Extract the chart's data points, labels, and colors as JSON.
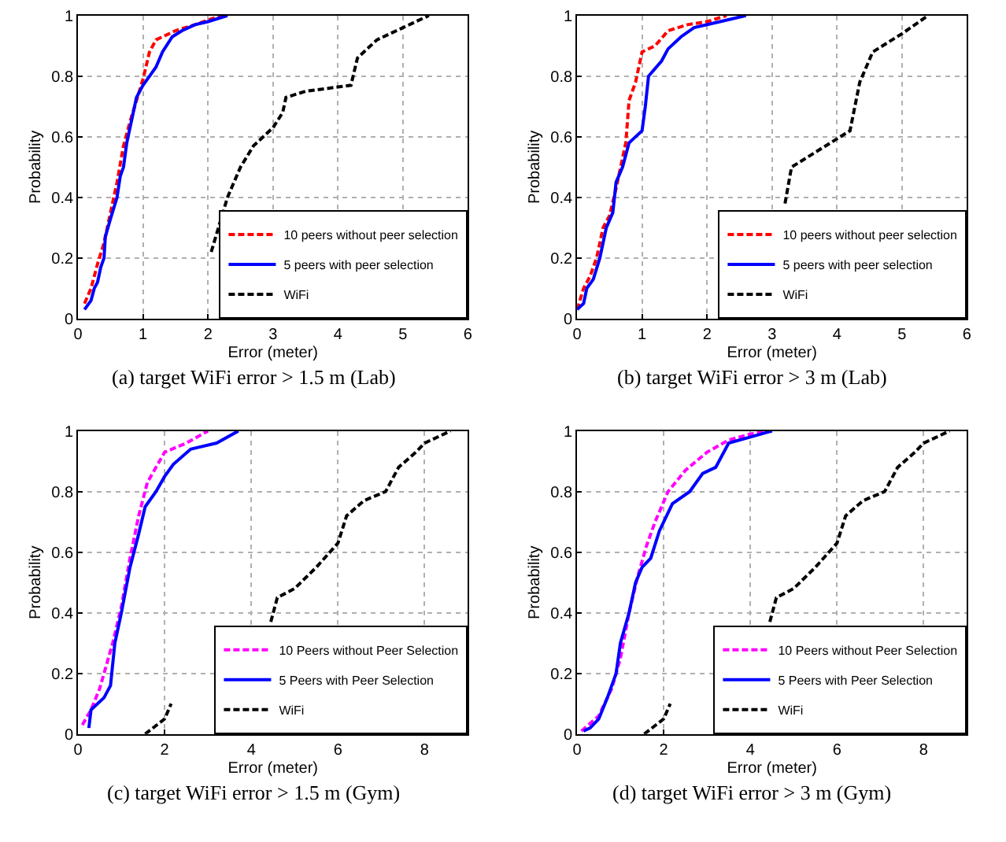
{
  "chart_data": [
    {
      "type": "line",
      "title": "(a) target WiFi error > 1.5 m (Lab)",
      "xlabel": "Error (meter)",
      "ylabel": "Probability",
      "xlim": [
        0,
        6
      ],
      "xticks": [
        0,
        1,
        2,
        3,
        4,
        5,
        6
      ],
      "ylim": [
        0,
        1
      ],
      "yticks": [
        0,
        0.2,
        0.4,
        0.6,
        0.8,
        1
      ],
      "grid": true,
      "legend": "bottom right",
      "marker": "none",
      "series": [
        {
          "name": "10 peers without peer selection",
          "color": "#ff0000",
          "line_style": "dashed",
          "x": [
            0.1,
            0.2,
            0.3,
            0.4,
            0.5,
            0.6,
            0.7,
            0.8,
            0.9,
            1.0,
            1.1,
            1.2,
            1.5,
            1.8,
            2.2
          ],
          "values": [
            0.05,
            0.1,
            0.18,
            0.25,
            0.35,
            0.45,
            0.57,
            0.65,
            0.72,
            0.79,
            0.88,
            0.92,
            0.95,
            0.97,
            1.0
          ]
        },
        {
          "name": "5 peers with peer selection",
          "color": "#0000ff",
          "line_style": "solid",
          "x": [
            0.1,
            0.2,
            0.25,
            0.3,
            0.35,
            0.4,
            0.42,
            0.5,
            0.6,
            0.65,
            0.7,
            0.75,
            0.8,
            0.9,
            1.0,
            1.1,
            1.2,
            1.3,
            1.45,
            1.6,
            1.8,
            2.0,
            2.3
          ],
          "values": [
            0.03,
            0.06,
            0.1,
            0.12,
            0.17,
            0.2,
            0.27,
            0.33,
            0.4,
            0.47,
            0.5,
            0.58,
            0.63,
            0.73,
            0.77,
            0.8,
            0.83,
            0.88,
            0.93,
            0.95,
            0.97,
            0.98,
            1.0
          ]
        },
        {
          "name": "WiFi",
          "color": "#000000",
          "line_style": "dashed",
          "x": [
            2.05,
            2.3,
            2.5,
            2.7,
            3.0,
            3.15,
            3.2,
            3.5,
            4.2,
            4.3,
            4.6,
            5.0,
            5.4
          ],
          "values": [
            0.22,
            0.4,
            0.5,
            0.57,
            0.63,
            0.68,
            0.73,
            0.75,
            0.77,
            0.86,
            0.92,
            0.96,
            1.0
          ]
        }
      ]
    },
    {
      "type": "line",
      "title": "(b) target WiFi error > 3 m (Lab)",
      "xlabel": "Error (meter)",
      "ylabel": "Probability",
      "xlim": [
        0,
        6
      ],
      "xticks": [
        0,
        1,
        2,
        3,
        4,
        5,
        6
      ],
      "ylim": [
        0,
        1
      ],
      "yticks": [
        0,
        0.2,
        0.4,
        0.6,
        0.8,
        1
      ],
      "grid": true,
      "legend": "bottom right",
      "marker": "none",
      "series": [
        {
          "name": "10 peers without peer selection",
          "color": "#ff0000",
          "line_style": "dashed",
          "x": [
            0,
            0.1,
            0.2,
            0.3,
            0.4,
            0.5,
            0.6,
            0.7,
            0.75,
            0.8,
            0.9,
            1.0,
            1.2,
            1.4,
            1.7,
            2.0,
            2.3
          ],
          "values": [
            0.03,
            0.1,
            0.14,
            0.2,
            0.3,
            0.34,
            0.43,
            0.53,
            0.58,
            0.72,
            0.78,
            0.88,
            0.9,
            0.95,
            0.97,
            0.98,
            1.0
          ]
        },
        {
          "name": "5 peers with peer selection",
          "color": "#0000ff",
          "line_style": "solid",
          "x": [
            0,
            0.1,
            0.15,
            0.25,
            0.35,
            0.45,
            0.55,
            0.6,
            0.7,
            0.8,
            1.0,
            1.05,
            1.1,
            1.3,
            1.4,
            1.6,
            1.8,
            2.2,
            2.6
          ],
          "values": [
            0.03,
            0.05,
            0.1,
            0.13,
            0.2,
            0.3,
            0.35,
            0.45,
            0.5,
            0.58,
            0.62,
            0.7,
            0.8,
            0.85,
            0.89,
            0.93,
            0.96,
            0.98,
            1.0
          ]
        },
        {
          "name": "WiFi",
          "color": "#000000",
          "line_style": "dashed",
          "x": [
            3.2,
            3.3,
            4.2,
            4.35,
            4.55,
            5.0,
            5.4
          ],
          "values": [
            0.38,
            0.5,
            0.62,
            0.78,
            0.88,
            0.94,
            1.0
          ]
        }
      ]
    },
    {
      "type": "line",
      "title": "(c) target WiFi error > 1.5 m (Gym)",
      "xlabel": "Error (meter)",
      "ylabel": "Probability",
      "xlim": [
        0,
        9
      ],
      "xticks": [
        0,
        2,
        4,
        6,
        8
      ],
      "ylim": [
        0,
        1
      ],
      "yticks": [
        0,
        0.2,
        0.4,
        0.6,
        0.8,
        1
      ],
      "grid": true,
      "legend": "bottom right",
      "marker": "none",
      "series": [
        {
          "name": "10 Peers without Peer Selection",
          "color": "#ff00ff",
          "line_style": "dashed",
          "x": [
            0.1,
            0.3,
            0.5,
            0.8,
            1.0,
            1.2,
            1.4,
            1.6,
            2.0,
            2.5,
            3.0
          ],
          "values": [
            0.03,
            0.08,
            0.15,
            0.3,
            0.42,
            0.58,
            0.72,
            0.83,
            0.93,
            0.96,
            1.0
          ]
        },
        {
          "name": "5 Peers with Peer Selection",
          "color": "#0000ff",
          "line_style": "solid",
          "x": [
            0.25,
            0.3,
            0.6,
            0.75,
            0.85,
            1.0,
            1.2,
            1.4,
            1.55,
            1.8,
            2.0,
            2.2,
            2.6,
            3.2,
            3.7
          ],
          "values": [
            0.02,
            0.08,
            0.12,
            0.16,
            0.3,
            0.4,
            0.55,
            0.66,
            0.75,
            0.8,
            0.85,
            0.89,
            0.94,
            0.96,
            1.0
          ]
        },
        {
          "name": "WiFi",
          "color": "#000000",
          "line_style": "dashed",
          "x": [
            1.55,
            2.0,
            2.15,
            2.7,
            4.45,
            4.6,
            5.0,
            5.5,
            6.0,
            6.2,
            6.6,
            7.1,
            7.4,
            7.8,
            8.0,
            8.6
          ],
          "values": [
            0,
            0.05,
            0.1,
            null,
            0.37,
            0.45,
            0.48,
            0.55,
            0.63,
            0.72,
            0.77,
            0.8,
            0.88,
            0.93,
            0.96,
            1.0
          ]
        }
      ]
    },
    {
      "type": "line",
      "title": "(d) target WiFi error > 3 m (Gym)",
      "xlabel": "Error (meter)",
      "ylabel": "Probability",
      "xlim": [
        0,
        9
      ],
      "xticks": [
        0,
        2,
        4,
        6,
        8
      ],
      "ylim": [
        0,
        1
      ],
      "yticks": [
        0,
        0.2,
        0.4,
        0.6,
        0.8,
        1
      ],
      "grid": true,
      "legend": "bottom right",
      "marker": "none",
      "series": [
        {
          "name": "10 Peers without Peer Selection",
          "color": "#ff00ff",
          "line_style": "dashed",
          "x": [
            0.1,
            0.5,
            0.8,
            1.0,
            1.2,
            1.4,
            1.6,
            1.8,
            2.1,
            2.5,
            3.0,
            3.5,
            4.0,
            4.5
          ],
          "values": [
            0.01,
            0.06,
            0.15,
            0.25,
            0.4,
            0.52,
            0.62,
            0.7,
            0.8,
            0.87,
            0.93,
            0.97,
            0.99,
            1.0
          ]
        },
        {
          "name": "5 Peers with Peer Selection",
          "color": "#0000ff",
          "line_style": "solid",
          "x": [
            0.15,
            0.3,
            0.5,
            0.7,
            0.9,
            1.0,
            1.2,
            1.35,
            1.5,
            1.7,
            1.9,
            2.2,
            2.6,
            2.9,
            3.2,
            3.5,
            4.0,
            4.5
          ],
          "values": [
            0.01,
            0.02,
            0.05,
            0.12,
            0.2,
            0.3,
            0.4,
            0.5,
            0.55,
            0.58,
            0.67,
            0.76,
            0.8,
            0.86,
            0.88,
            0.96,
            0.98,
            1.0
          ]
        },
        {
          "name": "WiFi",
          "color": "#000000",
          "line_style": "dashed",
          "x": [
            1.55,
            2.0,
            2.15,
            2.7,
            4.45,
            4.6,
            5.0,
            5.5,
            6.0,
            6.2,
            6.6,
            7.1,
            7.4,
            7.8,
            8.0,
            8.6
          ],
          "values": [
            0,
            0.05,
            0.1,
            null,
            0.37,
            0.45,
            0.48,
            0.55,
            0.63,
            0.72,
            0.77,
            0.8,
            0.88,
            0.93,
            0.96,
            1.0
          ]
        }
      ]
    }
  ]
}
